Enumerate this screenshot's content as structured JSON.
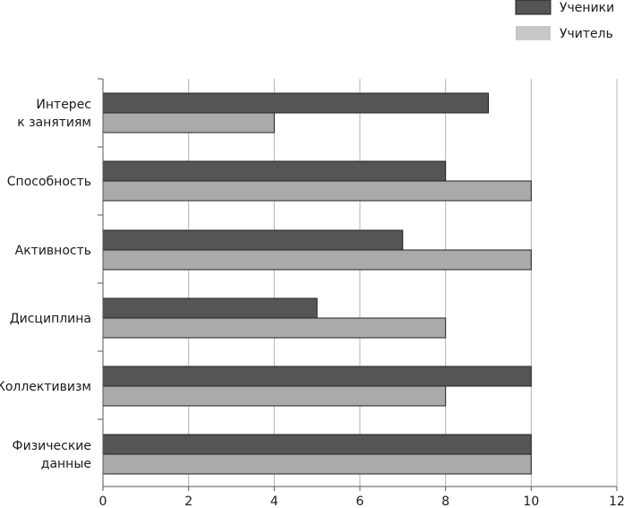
{
  "chart_data": {
    "type": "bar",
    "orientation": "horizontal",
    "categories": [
      [
        "Интерес",
        "к занятиям"
      ],
      [
        "Способность"
      ],
      [
        "Активность"
      ],
      [
        "Дисциплина"
      ],
      [
        "Коллективизм"
      ],
      [
        "Физические",
        "данные"
      ]
    ],
    "series": [
      {
        "name": "Ученики",
        "color": "#555555",
        "values": [
          9,
          8,
          7,
          5,
          10,
          10
        ]
      },
      {
        "name": "Учитель",
        "color": "#aaaaaa",
        "values": [
          4,
          10,
          10,
          8,
          8,
          10
        ]
      }
    ],
    "xlim": [
      0,
      12
    ],
    "xticks": [
      "0",
      "2",
      "4",
      "6",
      "8",
      "10",
      "12"
    ],
    "grid": true,
    "legend": "top-right",
    "title": "",
    "xlabel": "",
    "ylabel": ""
  }
}
